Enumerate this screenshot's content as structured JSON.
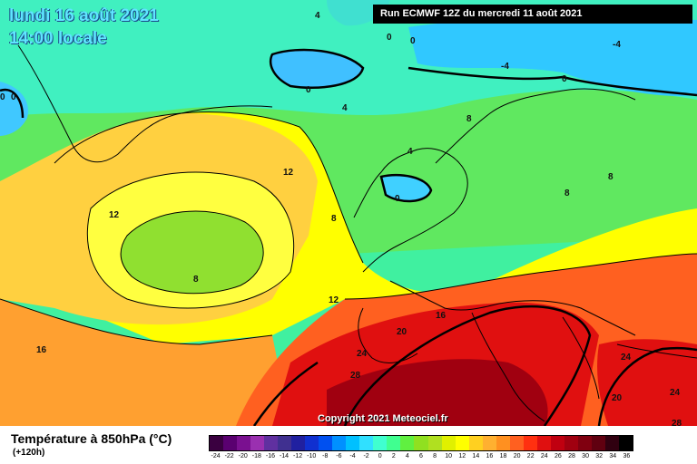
{
  "header": {
    "date_line": "lundi 16 août 2021",
    "time_line": "14:00 locale",
    "run_info": "Run ECMWF 12Z du mercredi 11 août 2021"
  },
  "copyright": "Copyright 2021 Meteociel.fr",
  "legend": {
    "title": "Température à 850hPa (°C)",
    "subtitle": "(+120h)",
    "ticks": [
      "-24",
      "-22",
      "-20",
      "-18",
      "-16",
      "-14",
      "-12",
      "-10",
      "-8",
      "-6",
      "-4",
      "-2",
      "0",
      "2",
      "4",
      "6",
      "8",
      "10",
      "12",
      "14",
      "16",
      "18",
      "20",
      "22",
      "24",
      "26",
      "28",
      "30",
      "32",
      "34",
      "36"
    ],
    "colors": [
      "#3a0040",
      "#5a0070",
      "#7a1090",
      "#9a30b0",
      "#6030a0",
      "#403090",
      "#2020a0",
      "#1030d0",
      "#0050f0",
      "#0090ff",
      "#00c0ff",
      "#30e0ff",
      "#40ffd0",
      "#40ff90",
      "#60f040",
      "#90e020",
      "#b0e020",
      "#e0f000",
      "#ffff00",
      "#ffd020",
      "#ffb030",
      "#ff9020",
      "#ff6020",
      "#ff3010",
      "#e01010",
      "#c00010",
      "#a00010",
      "#800010",
      "#600010",
      "#300010",
      "#000000"
    ]
  },
  "map": {
    "contour_labels": [
      {
        "id": "label-4-north",
        "text": "4"
      },
      {
        "id": "label-0-north-a",
        "text": "0"
      },
      {
        "id": "label-0-north-b",
        "text": "0"
      },
      {
        "id": "label-0-west-a",
        "text": "0"
      },
      {
        "id": "label-0-west-b",
        "text": "0"
      },
      {
        "id": "label-0-iceland",
        "text": "0"
      },
      {
        "id": "label-minus4-ne",
        "text": "-4"
      },
      {
        "id": "label-minus4-e",
        "text": "-4"
      },
      {
        "id": "label-0-scandinavia",
        "text": "0"
      },
      {
        "id": "label-4-norwegian-sea",
        "text": "4"
      },
      {
        "id": "label-8-scandinavia",
        "text": "8"
      },
      {
        "id": "label-4-north-sea",
        "text": "4"
      },
      {
        "id": "label-0-north-sea",
        "text": "0"
      },
      {
        "id": "label-8-russia",
        "text": "8"
      },
      {
        "id": "label-8-eastern-europe",
        "text": "8"
      },
      {
        "id": "label-12-atlantic",
        "text": "12"
      },
      {
        "id": "label-12-west",
        "text": "12"
      },
      {
        "id": "label-8-britain",
        "text": "8"
      },
      {
        "id": "label-8-atlantic",
        "text": "8"
      },
      {
        "id": "label-12-biscay",
        "text": "12"
      },
      {
        "id": "label-16-alps",
        "text": "16"
      },
      {
        "id": "label-20-iberia-n",
        "text": "20"
      },
      {
        "id": "label-24-iberia",
        "text": "24"
      },
      {
        "id": "label-28-iberia",
        "text": "28"
      },
      {
        "id": "label-16-atlantic",
        "text": "16"
      },
      {
        "id": "label-24-balkans",
        "text": "24"
      },
      {
        "id": "label-20-aegean",
        "text": "20"
      },
      {
        "id": "label-24-turkey",
        "text": "24"
      },
      {
        "id": "label-28-turkey",
        "text": "28"
      }
    ]
  }
}
